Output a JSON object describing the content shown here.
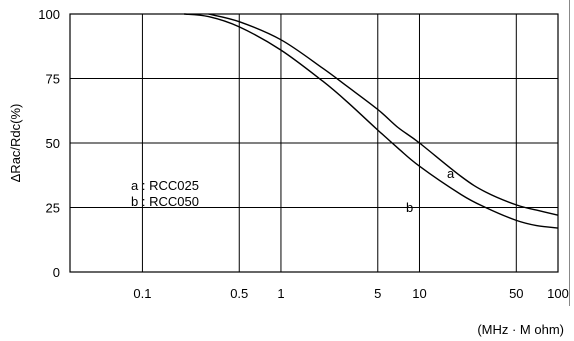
{
  "chart_data": {
    "type": "line",
    "x_scale": "log",
    "xlim": [
      0.03,
      100
    ],
    "ylim": [
      0,
      100
    ],
    "x_ticks": [
      {
        "value": 0.1,
        "label": "0.1"
      },
      {
        "value": 0.5,
        "label": "0.5"
      },
      {
        "value": 1,
        "label": "1"
      },
      {
        "value": 5,
        "label": "5"
      },
      {
        "value": 10,
        "label": "10"
      },
      {
        "value": 50,
        "label": "50"
      },
      {
        "value": 100,
        "label": "100"
      }
    ],
    "y_ticks": [
      {
        "value": 0,
        "label": "0"
      },
      {
        "value": 25,
        "label": "25"
      },
      {
        "value": 50,
        "label": "50"
      },
      {
        "value": 75,
        "label": "75"
      },
      {
        "value": 100,
        "label": "100"
      }
    ],
    "grid": true,
    "ylabel": "ΔRac/Rdc(%)",
    "xlabel": "(MHz · M ohm)",
    "legend_lines": [
      "a : RCC025",
      "b : RCC050"
    ],
    "series": [
      {
        "name": "a",
        "x": [
          0.3,
          0.5,
          1,
          2,
          3,
          5,
          7,
          10,
          20,
          30,
          50,
          70,
          100
        ],
        "y": [
          100,
          97,
          90,
          79,
          72,
          63,
          56,
          50,
          37,
          31,
          26,
          24,
          22
        ]
      },
      {
        "name": "b",
        "x": [
          0.2,
          0.3,
          0.5,
          1,
          2,
          3,
          5,
          7,
          10,
          20,
          30,
          50,
          70,
          100
        ],
        "y": [
          100,
          99,
          95,
          86,
          74,
          66,
          55,
          48,
          41,
          30,
          25,
          20,
          18,
          17
        ]
      }
    ]
  }
}
